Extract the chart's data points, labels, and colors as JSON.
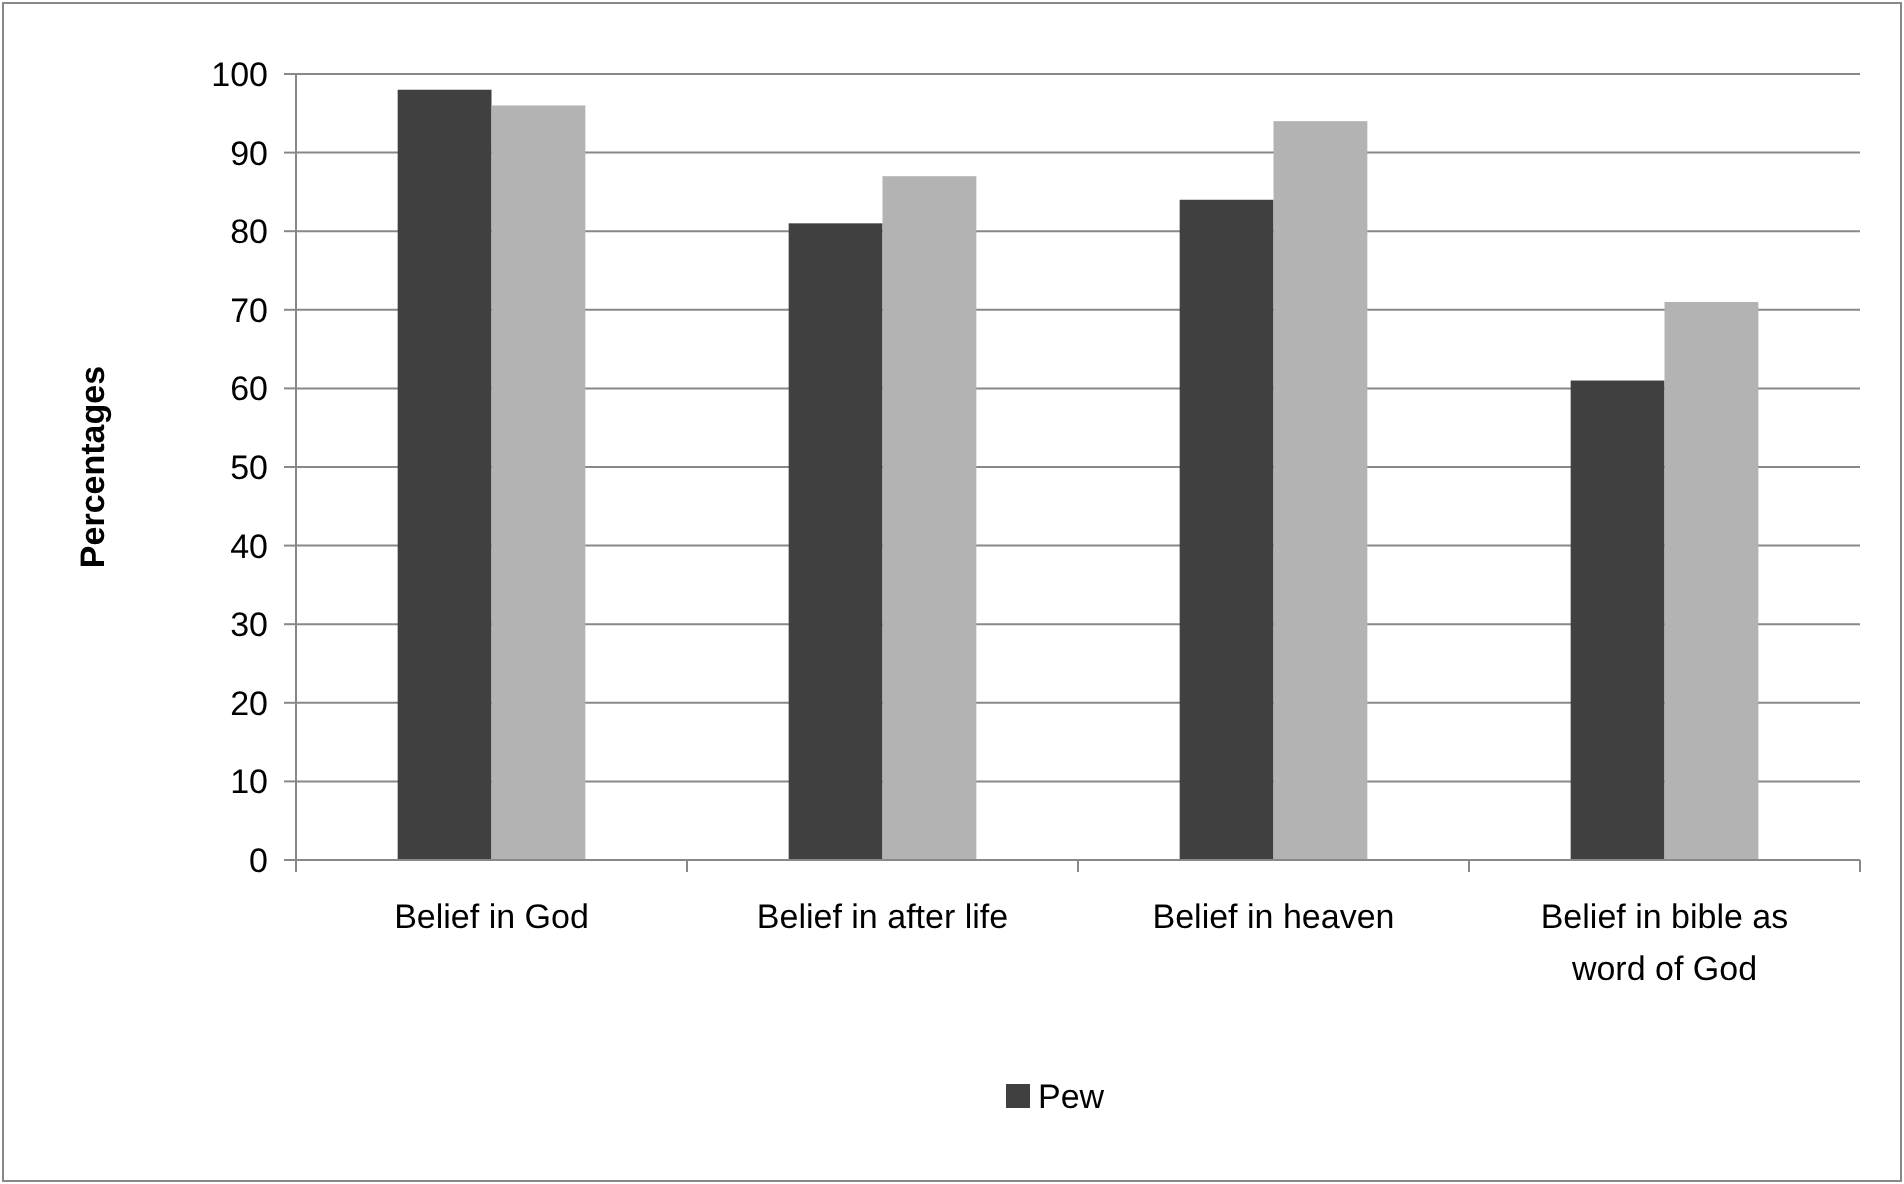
{
  "chart_data": {
    "type": "bar",
    "ylabel": "Percentages",
    "categories": [
      "Belief in God",
      "Belief in after life",
      "Belief in heaven",
      "Belief in bible as word of God"
    ],
    "series": [
      {
        "name": "Pew",
        "color": "#404040",
        "values": [
          98,
          81,
          84,
          61
        ]
      },
      {
        "color": "#b3b3b3",
        "values": [
          96,
          87,
          94,
          71
        ]
      }
    ],
    "ylim": [
      0,
      100
    ],
    "yticks": [
      0,
      10,
      20,
      30,
      40,
      50,
      60,
      70,
      80,
      90,
      100
    ],
    "grid": "y",
    "legend": "bottom"
  }
}
